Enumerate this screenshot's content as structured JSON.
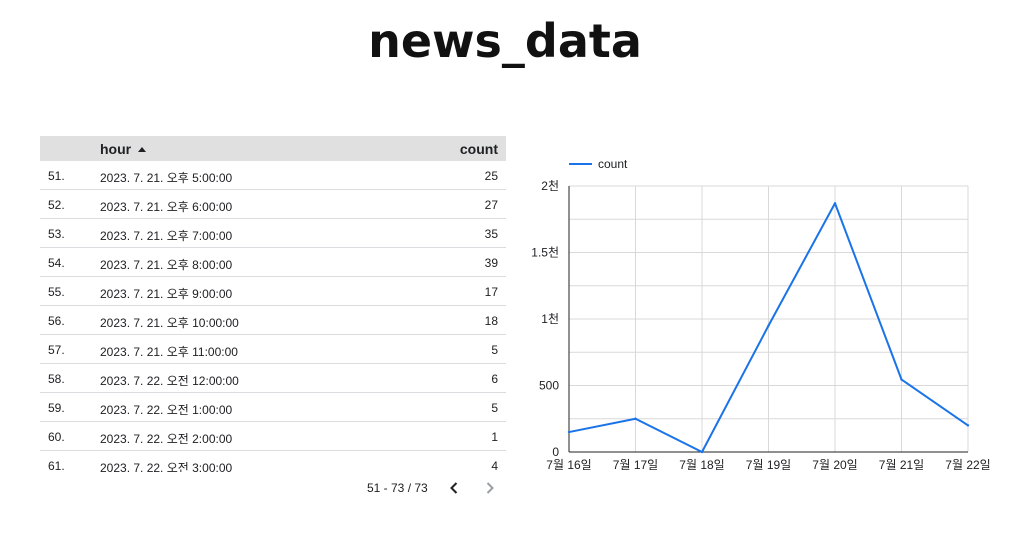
{
  "page": {
    "title": "news_data"
  },
  "table": {
    "columns": {
      "hour": "hour",
      "count": "count"
    },
    "rows": [
      {
        "index": "51.",
        "hour": "2023. 7. 21. 오후 5:00:00",
        "count": "25"
      },
      {
        "index": "52.",
        "hour": "2023. 7. 21. 오후 6:00:00",
        "count": "27"
      },
      {
        "index": "53.",
        "hour": "2023. 7. 21. 오후 7:00:00",
        "count": "35"
      },
      {
        "index": "54.",
        "hour": "2023. 7. 21. 오후 8:00:00",
        "count": "39"
      },
      {
        "index": "55.",
        "hour": "2023. 7. 21. 오후 9:00:00",
        "count": "17"
      },
      {
        "index": "56.",
        "hour": "2023. 7. 21. 오후 10:00:00",
        "count": "18"
      },
      {
        "index": "57.",
        "hour": "2023. 7. 21. 오후 11:00:00",
        "count": "5"
      },
      {
        "index": "58.",
        "hour": "2023. 7. 22. 오전 12:00:00",
        "count": "6"
      },
      {
        "index": "59.",
        "hour": "2023. 7. 22. 오전 1:00:00",
        "count": "5"
      },
      {
        "index": "60.",
        "hour": "2023. 7. 22. 오전 2:00:00",
        "count": "1"
      },
      {
        "index": "61.",
        "hour": "2023. 7. 22. 오전 3:00:00",
        "count": "4"
      }
    ],
    "pagination": {
      "range": "51 - 73 / 73"
    }
  },
  "icons": {
    "prev": "chevron-left-icon",
    "next": "chevron-right-icon",
    "sort": "sort-ascending-icon"
  },
  "chart_data": {
    "type": "line",
    "categories": [
      "7월 16일",
      "7월 17일",
      "7월 18일",
      "7월 19일",
      "7월 20일",
      "7월 21일",
      "7월 22일"
    ],
    "series": [
      {
        "name": "count",
        "color": "#1a73e8",
        "values": [
          150,
          250,
          0,
          950,
          1870,
          545,
          200
        ]
      }
    ],
    "ylim": [
      0,
      2000
    ],
    "yticks": [
      {
        "value": 0,
        "label": "0"
      },
      {
        "value": 500,
        "label": "500"
      },
      {
        "value": 1000,
        "label": "1천"
      },
      {
        "value": 1500,
        "label": "1.5천"
      },
      {
        "value": 2000,
        "label": "2천"
      }
    ],
    "grid": true,
    "legend": "top-left"
  }
}
